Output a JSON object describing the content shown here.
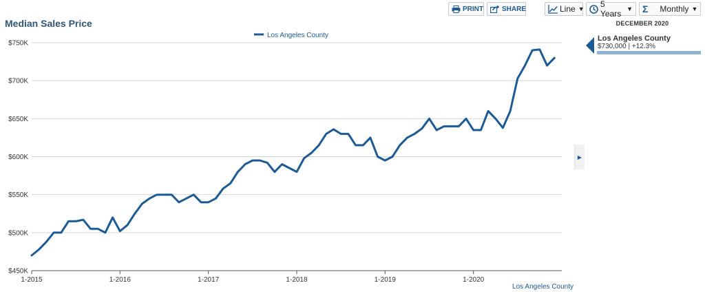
{
  "toolbar": {
    "print_label": "PRINT",
    "share_label": "SHARE",
    "chart_type": "Line",
    "range": "5 Years",
    "interval": "Monthly"
  },
  "side_panel": {
    "date": "DECEMBER 2020",
    "series": "Los Angeles County",
    "value": "$730,000 | +12.3%"
  },
  "colors": {
    "line": "#1a5a96",
    "title": "#2d5577",
    "accent_bar": "#8fb3d5"
  },
  "chart_data": {
    "type": "line",
    "title": "Median Sales Price",
    "source_label": "Los Angeles County",
    "ylim": [
      450000,
      750000
    ],
    "y_ticks": [
      {
        "value": 450000,
        "label": "$450K"
      },
      {
        "value": 500000,
        "label": "$500K"
      },
      {
        "value": 550000,
        "label": "$550K"
      },
      {
        "value": 600000,
        "label": "$600K"
      },
      {
        "value": 650000,
        "label": "$650K"
      },
      {
        "value": 700000,
        "label": "$700K"
      },
      {
        "value": 750000,
        "label": "$750K"
      }
    ],
    "x_ticks": [
      {
        "index": 0,
        "label": "1-2015"
      },
      {
        "index": 12,
        "label": "1-2016"
      },
      {
        "index": 24,
        "label": "1-2017"
      },
      {
        "index": 36,
        "label": "1-2018"
      },
      {
        "index": 48,
        "label": "1-2019"
      },
      {
        "index": 60,
        "label": "1-2020"
      }
    ],
    "grid": true,
    "legend_position": "top-center",
    "series": [
      {
        "name": "Los Angeles County",
        "start": "1-2015",
        "end": "12-2020",
        "values": [
          470000,
          478000,
          488000,
          500000,
          500000,
          515000,
          515000,
          517000,
          505000,
          505000,
          500000,
          520000,
          502000,
          510000,
          525000,
          538000,
          545000,
          550000,
          550000,
          550000,
          540000,
          545000,
          550000,
          540000,
          540000,
          545000,
          558000,
          565000,
          580000,
          590000,
          595000,
          595000,
          592000,
          580000,
          590000,
          585000,
          580000,
          598000,
          605000,
          615000,
          630000,
          636000,
          630000,
          630000,
          615000,
          615000,
          625000,
          600000,
          595000,
          600000,
          615000,
          625000,
          630000,
          637000,
          650000,
          635000,
          640000,
          640000,
          640000,
          650000,
          635000,
          635000,
          660000,
          650000,
          638000,
          660000,
          703000,
          720000,
          740000,
          741000,
          720000,
          730000
        ]
      }
    ]
  }
}
